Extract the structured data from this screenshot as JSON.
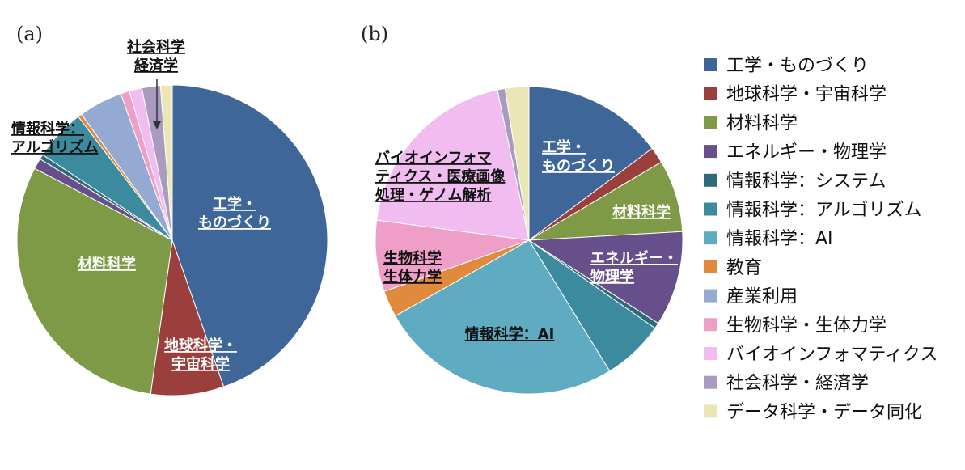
{
  "panels": [
    {
      "label": "(a)"
    },
    {
      "label": "(b)"
    }
  ],
  "legend": {
    "entries": [
      {
        "name": "工学・ものづくり",
        "color": "#3e6699"
      },
      {
        "name": "地球科学・宇宙科学",
        "color": "#9b3f3d"
      },
      {
        "name": "材料科学",
        "color": "#7e9a46"
      },
      {
        "name": "エネルギー・物理学",
        "color": "#664f8a"
      },
      {
        "name": "情報科学：システム",
        "color": "#2e6a7a"
      },
      {
        "name": "情報科学：アルゴリズム",
        "color": "#3b8a9e"
      },
      {
        "name": "情報科学：AI",
        "color": "#5fabc1"
      },
      {
        "name": "教育",
        "color": "#e08a3e"
      },
      {
        "name": "産業利用",
        "color": "#95aad2"
      },
      {
        "name": "生物科学・生体力学",
        "color": "#ef9ec8"
      },
      {
        "name": "バイオインフォマティクス",
        "color": "#f1bdf0"
      },
      {
        "name": "社会科学・経済学",
        "color": "#a99bbf"
      },
      {
        "name": "データ科学・データ同化",
        "color": "#ebe6b5"
      }
    ]
  },
  "chart_data": [
    {
      "type": "pie",
      "panel": "(a)",
      "categories": [
        "工学・ものづくり",
        "地球科学・宇宙科学",
        "材料科学",
        "エネルギー・物理学",
        "情報科学：システム",
        "情報科学：アルゴリズム",
        "情報科学：AI",
        "教育",
        "産業利用",
        "生物科学・生体力学",
        "バイオインフォマティクス",
        "社会科学・経済学",
        "データ科学・データ同化"
      ],
      "values": [
        44.0,
        7.5,
        30.0,
        1.1,
        0.5,
        5.3,
        0.0,
        0.4,
        4.5,
        0.9,
        1.3,
        1.9,
        1.2
      ],
      "annotations": [
        {
          "lines": [
            "工学・",
            "ものづくり"
          ],
          "color": "#ffffff"
        },
        {
          "lines": [
            "地球科学・",
            "宇宙科学"
          ],
          "color": "#ffffff"
        },
        {
          "lines": [
            "材料科学"
          ],
          "color": "#ffffff"
        },
        {
          "lines": [
            "情報科学：",
            "アルゴリズム"
          ],
          "color": "#111111"
        },
        {
          "lines": [
            "社会科学",
            "経済学"
          ],
          "color": "#111111"
        }
      ]
    },
    {
      "type": "pie",
      "panel": "(b)",
      "categories": [
        "工学・ものづくり",
        "地球科学・宇宙科学",
        "材料科学",
        "エネルギー・物理学",
        "情報科学：システム",
        "情報科学：アルゴリズム",
        "情報科学：AI",
        "教育",
        "産業利用",
        "生物科学・生体力学",
        "バイオインフォマティクス",
        "社会科学・経済学",
        "データ科学・データ同化"
      ],
      "values": [
        14.8,
        1.7,
        7.6,
        10.0,
        0.6,
        6.5,
        25.6,
        2.8,
        0.0,
        7.5,
        19.6,
        0.8,
        2.5
      ],
      "annotations": [
        {
          "lines": [
            "工学・",
            "ものづくり"
          ],
          "color": "#ffffff"
        },
        {
          "lines": [
            "材料科学"
          ],
          "color": "#ffffff"
        },
        {
          "lines": [
            "エネルギー・",
            "物理学"
          ],
          "color": "#ffffff"
        },
        {
          "lines": [
            "情報科学：AI"
          ],
          "color": "#111111"
        },
        {
          "lines": [
            "生物科学",
            "生体力学"
          ],
          "color": "#111111"
        },
        {
          "lines": [
            "バイオインフォマ",
            "ティクス・医療画像",
            "処理・ゲノム解析"
          ],
          "color": "#111111"
        }
      ]
    }
  ]
}
